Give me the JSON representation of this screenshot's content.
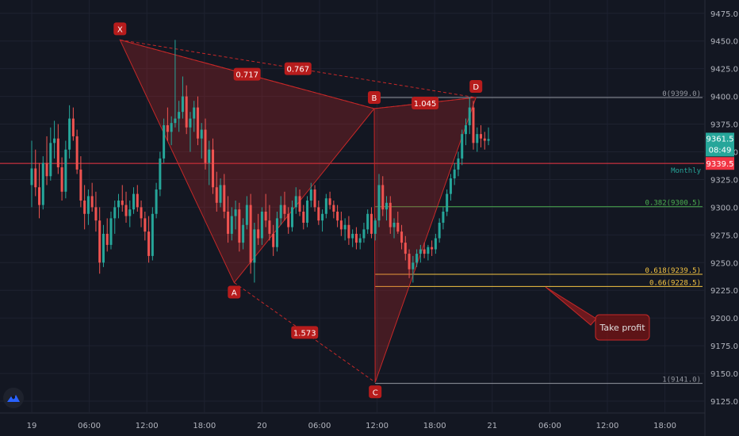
{
  "chart_data": {
    "type": "candlestick",
    "instrument": "",
    "y_ticks": [
      9475.0,
      9450.0,
      9425.0,
      9400.0,
      9375.0,
      9350.0,
      9325.0,
      9300.0,
      9275.0,
      9250.0,
      9225.0,
      9200.0,
      9175.0,
      9150.0,
      9125.0
    ],
    "y_tick_labels": [
      "9475.0",
      "9450.0",
      "9425.0",
      "9400.0",
      "9375.0",
      "9350.0",
      "9325.0",
      "9300.0",
      "9275.0",
      "9250.0",
      "9225.0",
      "9200.0",
      "9175.0",
      "9150.0",
      "9125.0"
    ],
    "ylim": [
      9115,
      9487
    ],
    "x_labels": [
      "19",
      "06:00",
      "12:00",
      "18:00",
      "20",
      "06:00",
      "12:00",
      "18:00",
      "21",
      "06:00",
      "12:00",
      "18:00"
    ],
    "x_label_hours": [
      0,
      6,
      12,
      18,
      24,
      30,
      36,
      42,
      48,
      54,
      60,
      66
    ],
    "harmonic_points": [
      {
        "label": "X",
        "hour": 9.2,
        "price": 9451
      },
      {
        "label": "A",
        "hour": 21.1,
        "price": 9232
      },
      {
        "label": "B",
        "hour": 35.7,
        "price": 9389
      },
      {
        "label": "C",
        "hour": 35.8,
        "price": 9142
      },
      {
        "label": "D",
        "hour": 46.3,
        "price": 9399
      }
    ],
    "ratios": [
      {
        "text": "0.717",
        "from": "X",
        "to": "B"
      },
      {
        "text": "0.767",
        "from": "X",
        "to": "D"
      },
      {
        "text": "1.045",
        "from": "B",
        "to": "D"
      },
      {
        "text": "1.573",
        "from": "A",
        "to": "C"
      }
    ],
    "fib_levels": [
      {
        "label": "0(9399.0)",
        "price": 9399.0,
        "color": "#9598a1"
      },
      {
        "label": "0.382(9300.5)",
        "price": 9300.5,
        "color": "#4caf50"
      },
      {
        "label": "0.618(9239.5)",
        "price": 9239.5,
        "color": "#f5c542"
      },
      {
        "label": "0.66(9228.5)",
        "price": 9228.5,
        "color": "#f5c542"
      },
      {
        "label": "1(9141.0)",
        "price": 9141.0,
        "color": "#9598a1"
      }
    ],
    "fib_start_hour": 35.8,
    "monthly_line": {
      "label": "Monthly",
      "price": 9339.5,
      "badge": "9339.5",
      "color": "#f23645"
    },
    "last_price": {
      "price": "9361.5",
      "countdown": "08:49",
      "color": "#26a69a"
    },
    "annotation": {
      "text": "Take profit"
    },
    "colors": {
      "up": "#26a69a",
      "down": "#ef5350",
      "pattern": "#c62828",
      "label_bg": "#b71c1c"
    },
    "candles_hour_step": 0.25,
    "candles": [
      [
        9320,
        9360,
        9300,
        9335
      ],
      [
        9335,
        9352,
        9310,
        9318
      ],
      [
        9318,
        9340,
        9290,
        9302
      ],
      [
        9302,
        9346,
        9298,
        9340
      ],
      [
        9340,
        9364,
        9320,
        9328
      ],
      [
        9328,
        9372,
        9324,
        9358
      ],
      [
        9358,
        9378,
        9344,
        9362
      ],
      [
        9362,
        9375,
        9330,
        9336
      ],
      [
        9336,
        9345,
        9306,
        9314
      ],
      [
        9314,
        9360,
        9308,
        9352
      ],
      [
        9352,
        9392,
        9344,
        9380
      ],
      [
        9380,
        9390,
        9360,
        9364
      ],
      [
        9364,
        9370,
        9330,
        9334
      ],
      [
        9334,
        9346,
        9300,
        9306
      ],
      [
        9306,
        9320,
        9280,
        9294
      ],
      [
        9294,
        9316,
        9284,
        9310
      ],
      [
        9310,
        9322,
        9296,
        9300
      ],
      [
        9300,
        9314,
        9278,
        9288
      ],
      [
        9288,
        9300,
        9240,
        9250
      ],
      [
        9250,
        9284,
        9246,
        9276
      ],
      [
        9276,
        9290,
        9260,
        9266
      ],
      [
        9266,
        9296,
        9262,
        9290
      ],
      [
        9290,
        9306,
        9276,
        9300
      ],
      [
        9300,
        9312,
        9290,
        9306
      ],
      [
        9306,
        9320,
        9296,
        9302
      ],
      [
        9302,
        9314,
        9286,
        9292
      ],
      [
        9292,
        9306,
        9282,
        9298
      ],
      [
        9298,
        9318,
        9294,
        9312
      ],
      [
        9312,
        9320,
        9296,
        9300
      ],
      [
        9300,
        9306,
        9282,
        9290
      ],
      [
        9290,
        9296,
        9270,
        9278
      ],
      [
        9278,
        9292,
        9250,
        9256
      ],
      [
        9256,
        9300,
        9252,
        9294
      ],
      [
        9294,
        9322,
        9290,
        9316
      ],
      [
        9316,
        9350,
        9310,
        9344
      ],
      [
        9344,
        9380,
        9340,
        9374
      ],
      [
        9374,
        9390,
        9360,
        9368
      ],
      [
        9368,
        9382,
        9356,
        9376
      ],
      [
        9376,
        9451,
        9372,
        9380
      ],
      [
        9380,
        9396,
        9368,
        9386
      ],
      [
        9386,
        9418,
        9380,
        9400
      ],
      [
        9400,
        9410,
        9366,
        9372
      ],
      [
        9372,
        9386,
        9350,
        9380
      ],
      [
        9380,
        9396,
        9368,
        9390
      ],
      [
        9390,
        9400,
        9356,
        9362
      ],
      [
        9362,
        9376,
        9344,
        9370
      ],
      [
        9370,
        9380,
        9334,
        9340
      ],
      [
        9340,
        9360,
        9320,
        9352
      ],
      [
        9352,
        9362,
        9312,
        9318
      ],
      [
        9318,
        9332,
        9296,
        9304
      ],
      [
        9304,
        9326,
        9300,
        9320
      ],
      [
        9320,
        9330,
        9290,
        9296
      ],
      [
        9296,
        9310,
        9268,
        9276
      ],
      [
        9276,
        9300,
        9270,
        9292
      ],
      [
        9292,
        9306,
        9280,
        9298
      ],
      [
        9298,
        9304,
        9260,
        9268
      ],
      [
        9268,
        9290,
        9262,
        9284
      ],
      [
        9284,
        9310,
        9280,
        9302
      ],
      [
        9302,
        9312,
        9240,
        9250
      ],
      [
        9250,
        9286,
        9232,
        9280
      ],
      [
        9280,
        9294,
        9266,
        9272
      ],
      [
        9272,
        9300,
        9266,
        9296
      ],
      [
        9296,
        9312,
        9282,
        9288
      ],
      [
        9288,
        9302,
        9270,
        9276
      ],
      [
        9276,
        9284,
        9256,
        9264
      ],
      [
        9264,
        9296,
        9260,
        9290
      ],
      [
        9290,
        9310,
        9284,
        9302
      ],
      [
        9302,
        9314,
        9288,
        9294
      ],
      [
        9294,
        9300,
        9276,
        9282
      ],
      [
        9282,
        9306,
        9278,
        9300
      ],
      [
        9300,
        9318,
        9294,
        9310
      ],
      [
        9310,
        9316,
        9292,
        9296
      ],
      [
        9296,
        9302,
        9280,
        9286
      ],
      [
        9286,
        9310,
        9282,
        9306
      ],
      [
        9306,
        9322,
        9300,
        9316
      ],
      [
        9316,
        9320,
        9296,
        9300
      ],
      [
        9300,
        9306,
        9284,
        9288
      ],
      [
        9288,
        9298,
        9278,
        9294
      ],
      [
        9294,
        9312,
        9290,
        9308
      ],
      [
        9308,
        9314,
        9298,
        9302
      ],
      [
        9302,
        9306,
        9290,
        9296
      ],
      [
        9296,
        9302,
        9282,
        9288
      ],
      [
        9288,
        9296,
        9274,
        9280
      ],
      [
        9280,
        9290,
        9270,
        9284
      ],
      [
        9284,
        9292,
        9266,
        9272
      ],
      [
        9272,
        9280,
        9264,
        9276
      ],
      [
        9276,
        9282,
        9262,
        9268
      ],
      [
        9268,
        9276,
        9262,
        9272
      ],
      [
        9272,
        9286,
        9268,
        9280
      ],
      [
        9280,
        9298,
        9276,
        9294
      ],
      [
        9294,
        9300,
        9272,
        9276
      ],
      [
        9276,
        9290,
        9270,
        9288
      ],
      [
        9288,
        9330,
        9282,
        9320
      ],
      [
        9320,
        9328,
        9292,
        9298
      ],
      [
        9298,
        9310,
        9288,
        9304
      ],
      [
        9304,
        9310,
        9276,
        9282
      ],
      [
        9282,
        9290,
        9272,
        9286
      ],
      [
        9286,
        9296,
        9276,
        9278
      ],
      [
        9278,
        9284,
        9262,
        9268
      ],
      [
        9268,
        9274,
        9252,
        9258
      ],
      [
        9258,
        9262,
        9236,
        9244
      ],
      [
        9244,
        9256,
        9232,
        9250
      ],
      [
        9250,
        9262,
        9246,
        9258
      ],
      [
        9258,
        9266,
        9250,
        9262
      ],
      [
        9262,
        9268,
        9254,
        9258
      ],
      [
        9258,
        9266,
        9252,
        9264
      ],
      [
        9264,
        9270,
        9256,
        9262
      ],
      [
        9262,
        9276,
        9258,
        9272
      ],
      [
        9272,
        9290,
        9268,
        9286
      ],
      [
        9286,
        9300,
        9280,
        9296
      ],
      [
        9296,
        9316,
        9292,
        9312
      ],
      [
        9312,
        9330,
        9306,
        9326
      ],
      [
        9326,
        9340,
        9320,
        9334
      ],
      [
        9334,
        9350,
        9328,
        9344
      ],
      [
        9344,
        9370,
        9338,
        9366
      ],
      [
        9366,
        9380,
        9356,
        9374
      ],
      [
        9374,
        9399,
        9366,
        9390
      ],
      [
        9390,
        9396,
        9352,
        9358
      ],
      [
        9358,
        9372,
        9350,
        9366
      ],
      [
        9366,
        9374,
        9354,
        9362
      ],
      [
        9362,
        9368,
        9352,
        9360
      ],
      [
        9360,
        9372,
        9356,
        9361.5
      ]
    ]
  }
}
